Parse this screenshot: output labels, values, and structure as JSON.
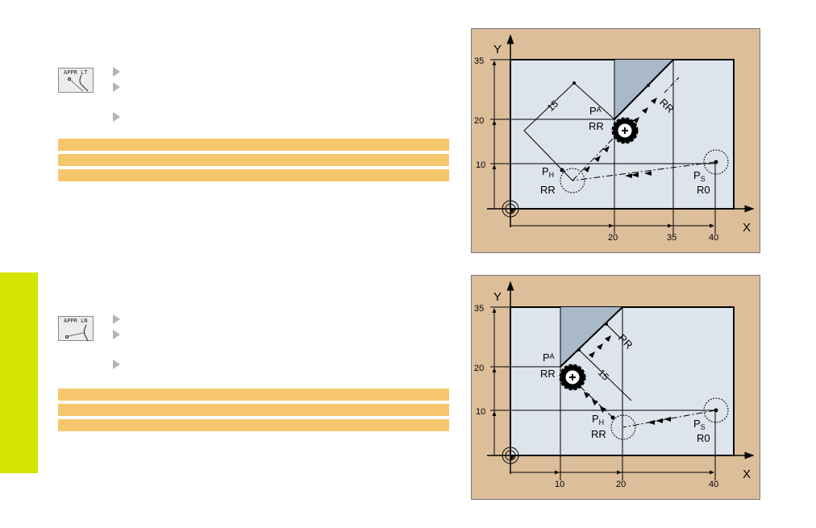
{
  "sections": [
    {
      "softkey": {
        "label": "APPR LT",
        "icon": "approach-line-tangent-icon"
      },
      "diagram": {
        "axis_x": "X",
        "axis_y": "Y",
        "y_ticks": [
          "35",
          "20",
          "10"
        ],
        "x_ticks": [
          "20",
          "35",
          "40"
        ],
        "dimension": "15",
        "pa": "P",
        "pa_sub": "A",
        "pa_comp": "RR",
        "ph": "P",
        "ph_sub": "H",
        "ph_comp": "RR",
        "ps": "P",
        "ps_sub": "S",
        "ps_comp": "R0",
        "tangent_comp": "RR"
      }
    },
    {
      "softkey": {
        "label": "APPR LN",
        "icon": "approach-line-normal-icon"
      },
      "diagram": {
        "axis_x": "X",
        "axis_y": "Y",
        "y_ticks": [
          "35",
          "20",
          "10"
        ],
        "x_ticks": [
          "10",
          "20",
          "40"
        ],
        "dimension": "15",
        "pa": "P",
        "pa_sub": "A",
        "pa_comp": "RR",
        "ph": "P",
        "ph_sub": "H",
        "ph_comp": "RR",
        "ps": "P",
        "ps_sub": "S",
        "ps_comp": "R0",
        "tangent_comp": "RR"
      }
    }
  ],
  "colors": {
    "tab": "#d2e400",
    "highlight_bar": "#f6c66c",
    "panel": "#ddbe9b",
    "workpiece": "#dde4ec",
    "material": "#a9b9c9"
  }
}
